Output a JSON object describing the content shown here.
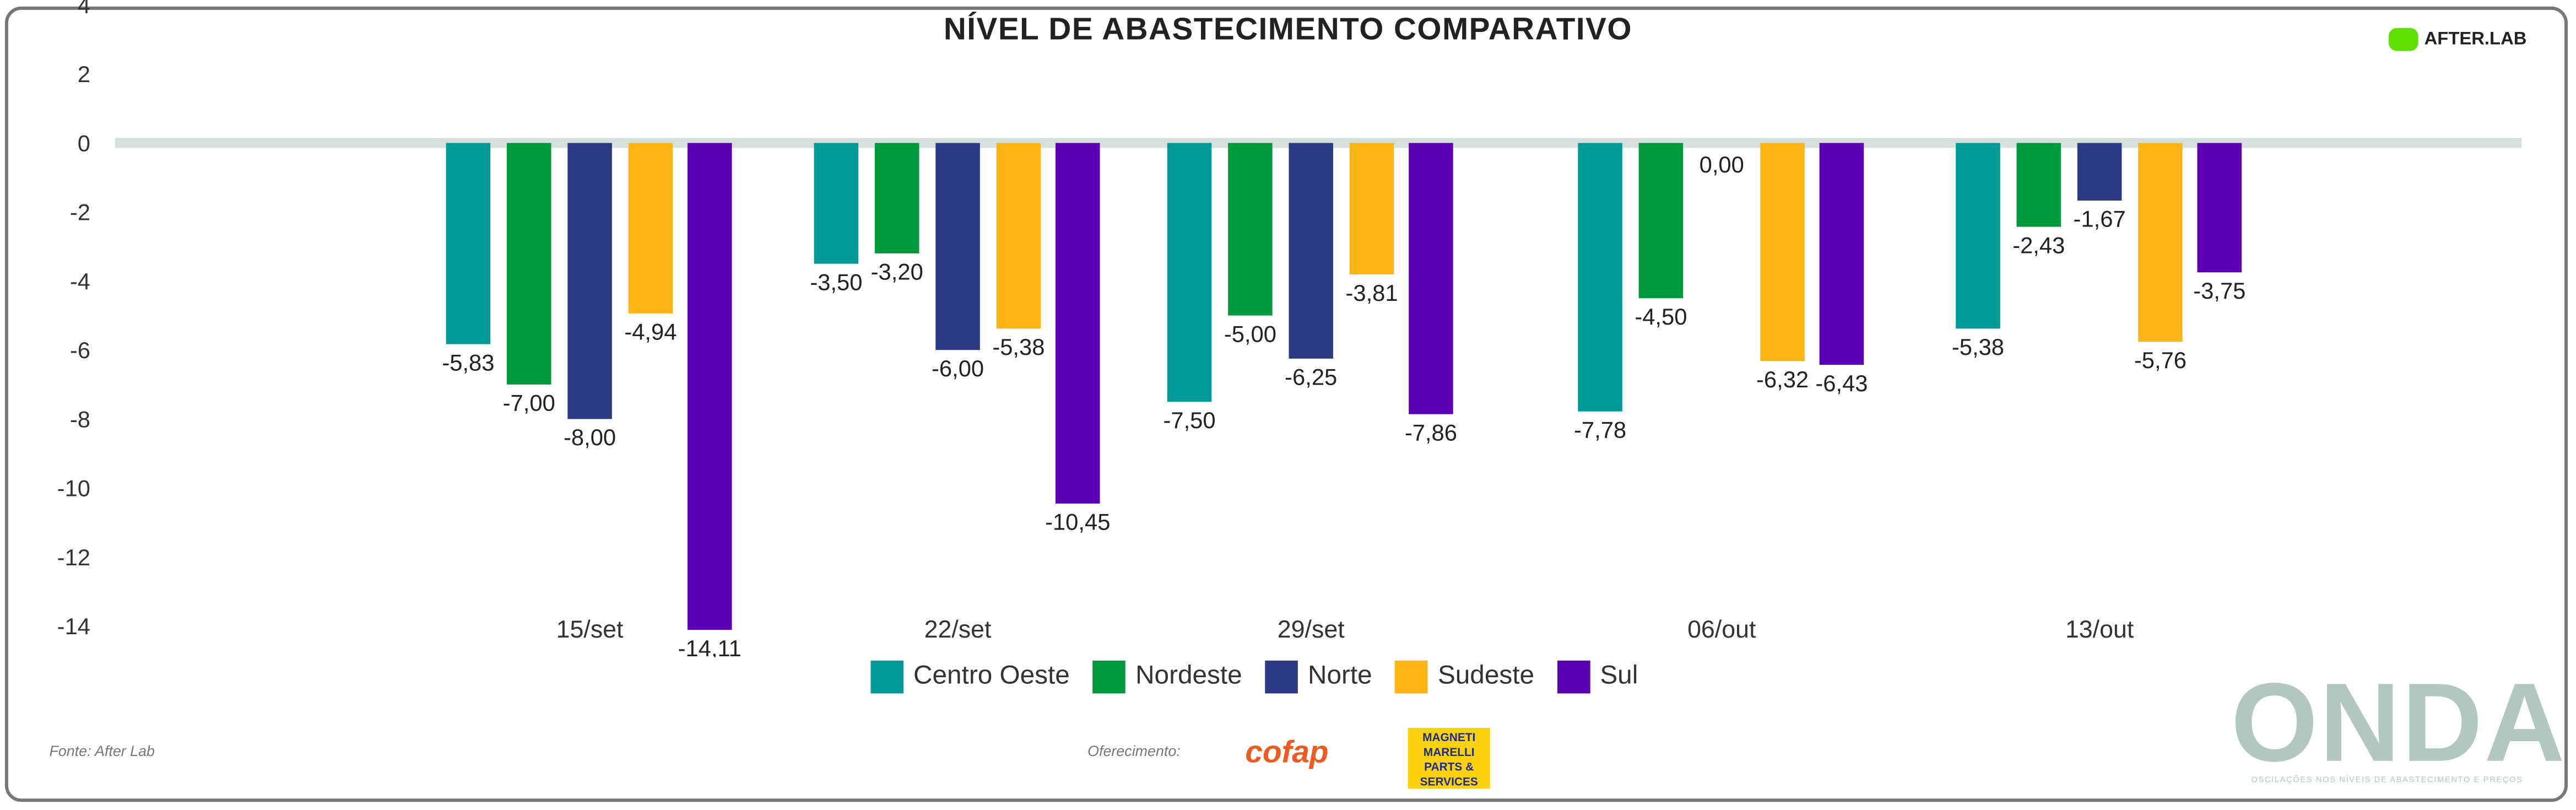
{
  "title": "NÍVEL DE ABASTECIMENTO COMPARATIVO",
  "brand": "AFTER.LAB",
  "source": "Fonte: After Lab",
  "sponsor_label": "Oferecimento:",
  "sponsors": [
    "cofap",
    "MAGNETI MARELLI PARTS & SERVICES"
  ],
  "onda": {
    "name": "ONDA",
    "tagline": "OSCILAÇÕES NOS NÍVEIS DE ABASTECIMENTO E PREÇOS"
  },
  "chart_data": {
    "type": "bar",
    "title": "NÍVEL DE ABASTECIMENTO COMPARATIVO",
    "categories": [
      "15/set",
      "22/set",
      "29/set",
      "06/out",
      "13/out"
    ],
    "series": [
      {
        "name": "Centro Oeste",
        "color": "#009a98",
        "values": [
          -5.83,
          -3.5,
          -7.5,
          -7.78,
          -5.38
        ]
      },
      {
        "name": "Nordeste",
        "color": "#009a3e",
        "values": [
          -7.0,
          -3.2,
          -5.0,
          -4.5,
          -2.43
        ]
      },
      {
        "name": "Norte",
        "color": "#2c3a85",
        "values": [
          -8.0,
          -6.0,
          -6.25,
          0.0,
          -1.67
        ]
      },
      {
        "name": "Sudeste",
        "color": "#fcb514",
        "values": [
          -4.94,
          -5.38,
          -3.81,
          -6.32,
          -5.76
        ]
      },
      {
        "name": "Sul",
        "color": "#5b00b5",
        "values": [
          -14.11,
          -10.45,
          -7.86,
          -6.43,
          -3.75
        ]
      }
    ],
    "yticks": [
      "4",
      "2",
      "0",
      "-2",
      "-4",
      "-6",
      "-8",
      "-10",
      "-12",
      "-14"
    ],
    "ylim": [
      -14,
      4
    ],
    "legend": "bottom-center",
    "grid": false
  }
}
